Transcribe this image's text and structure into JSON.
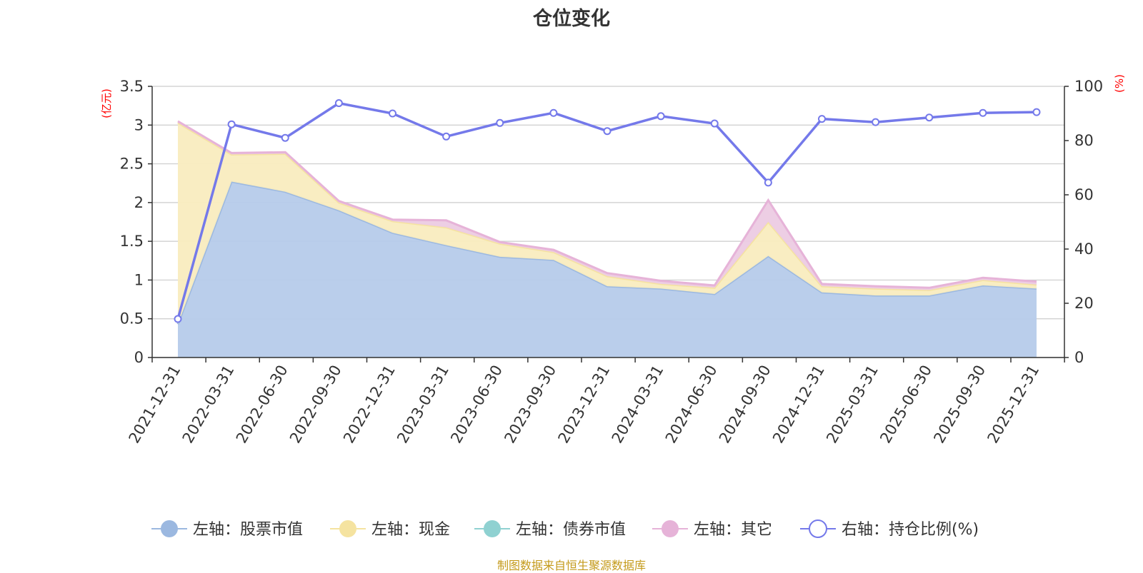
{
  "title": "仓位变化",
  "source": "制图数据来自恒生聚源数据库",
  "chart_data": {
    "type": "area",
    "categories": [
      "2021-12-31",
      "2022-03-31",
      "2022-06-30",
      "2022-09-30",
      "2022-12-31",
      "2023-03-31",
      "2023-06-30",
      "2023-09-30",
      "2023-12-31",
      "2024-03-31",
      "2024-06-30",
      "2024-09-30",
      "2024-12-31",
      "2025-03-31",
      "2025-06-30",
      "2025-09-30",
      "2025-12-31"
    ],
    "left_axis": {
      "unit": "(亿元)",
      "ylim": [
        0,
        3.5
      ],
      "ticks": [
        "0",
        "0.5",
        "1",
        "1.5",
        "2",
        "2.5",
        "3",
        "3.5"
      ]
    },
    "right_axis": {
      "unit": "(%)",
      "ylim": [
        0,
        100
      ],
      "ticks": [
        "0",
        "20",
        "40",
        "60",
        "80",
        "100"
      ]
    },
    "stacked": true,
    "series": [
      {
        "name": "左轴：股票市值",
        "axis": "left",
        "type": "area",
        "color": "#9bb8e0",
        "fill": "#b6cbea",
        "values": [
          0.43,
          2.27,
          2.14,
          1.9,
          1.61,
          1.45,
          1.3,
          1.26,
          0.92,
          0.89,
          0.82,
          1.31,
          0.84,
          0.8,
          0.8,
          0.93,
          0.89
        ]
      },
      {
        "name": "左轴：现金",
        "axis": "left",
        "type": "area",
        "color": "#f5e3a0",
        "fill": "#f9ecbf",
        "values": [
          2.6,
          0.35,
          0.49,
          0.1,
          0.15,
          0.23,
          0.17,
          0.1,
          0.13,
          0.06,
          0.08,
          0.44,
          0.08,
          0.09,
          0.07,
          0.07,
          0.05
        ]
      },
      {
        "name": "左轴：债券市值",
        "axis": "left",
        "type": "area",
        "color": "#8fd1d1",
        "fill": "#bfe4e4",
        "values": [
          0,
          0,
          0,
          0,
          0,
          0,
          0,
          0,
          0,
          0,
          0,
          0,
          0,
          0,
          0,
          0,
          0
        ]
      },
      {
        "name": "左轴：其它",
        "axis": "left",
        "type": "area",
        "color": "#e6b3d8",
        "fill": "#eccbe3",
        "values": [
          0.02,
          0.02,
          0.02,
          0.02,
          0.02,
          0.09,
          0.02,
          0.03,
          0.04,
          0.04,
          0.03,
          0.28,
          0.03,
          0.03,
          0.03,
          0.03,
          0.04
        ]
      },
      {
        "name": "右轴：持仓比例(%)",
        "axis": "right",
        "type": "line",
        "color": "#7479ea",
        "values": [
          14.2,
          86.0,
          81.0,
          93.8,
          90.0,
          81.5,
          86.5,
          90.2,
          83.5,
          89.0,
          86.3,
          64.5,
          88.0,
          86.8,
          88.5,
          90.2,
          90.5
        ]
      }
    ],
    "grid": true,
    "legend_position": "bottom"
  }
}
